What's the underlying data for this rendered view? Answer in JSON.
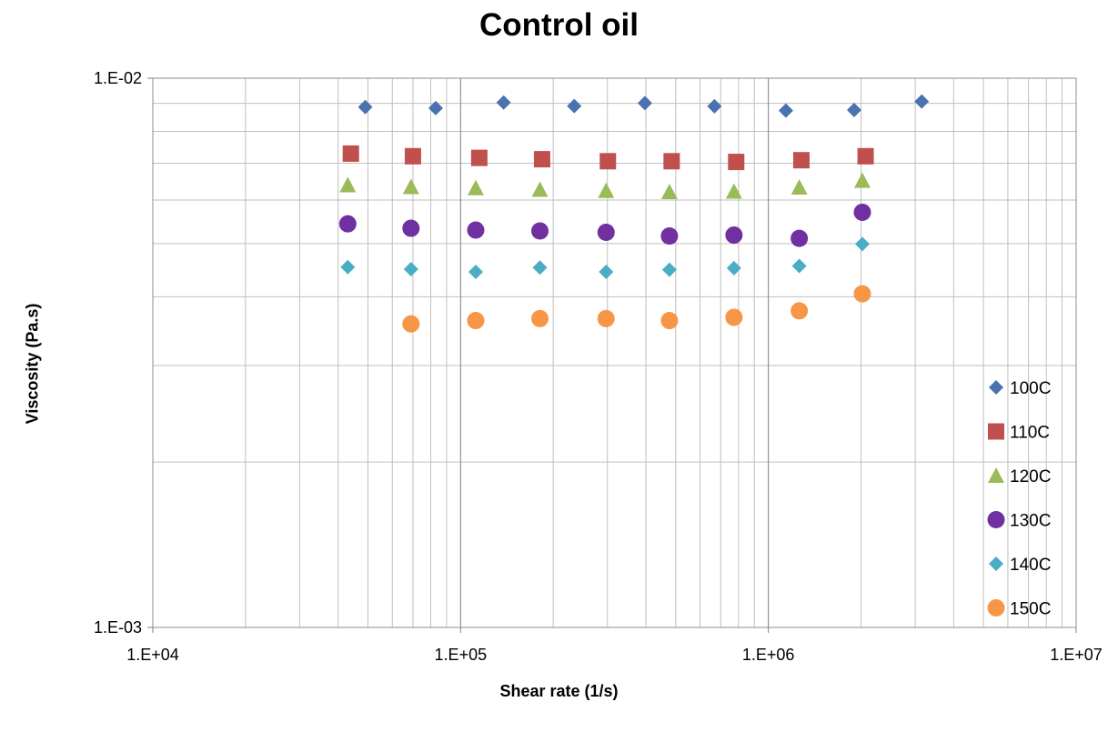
{
  "chart_data": {
    "type": "scatter",
    "title": "Control oil",
    "xlabel": "Shear rate (1/s)",
    "ylabel": "Viscosity (Pa.s)",
    "xscale": "log",
    "yscale": "log",
    "xlim": [
      10000,
      10000000
    ],
    "ylim": [
      0.001,
      0.01
    ],
    "x_tick_labels": [
      "1.E+04",
      "1.E+05",
      "1.E+06",
      "1.E+07"
    ],
    "y_tick_labels": [
      "1.E-03",
      "1.E-02"
    ],
    "grid": true,
    "legend_position": "right",
    "series": [
      {
        "name": "100C",
        "marker": "diamond",
        "color": "#4a72b0",
        "points": [
          [
            49000,
            0.00886
          ],
          [
            83000,
            0.00882
          ],
          [
            138000,
            0.00903
          ],
          [
            234000,
            0.0089
          ],
          [
            397000,
            0.00901
          ],
          [
            668000,
            0.00889
          ],
          [
            1140000,
            0.00873
          ],
          [
            1900000,
            0.00875
          ],
          [
            3150000,
            0.00907
          ]
        ]
      },
      {
        "name": "110C",
        "marker": "square",
        "color": "#c0504d",
        "points": [
          [
            44000,
            0.00729
          ],
          [
            70000,
            0.00721
          ],
          [
            115000,
            0.00716
          ],
          [
            184000,
            0.00712
          ],
          [
            301000,
            0.00706
          ],
          [
            485000,
            0.00706
          ],
          [
            786000,
            0.00704
          ],
          [
            1280000,
            0.00709
          ],
          [
            2070000,
            0.00721
          ]
        ]
      },
      {
        "name": "120C",
        "marker": "triangle",
        "color": "#9bbb59",
        "points": [
          [
            43000,
            0.00639
          ],
          [
            69000,
            0.00634
          ],
          [
            112000,
            0.00631
          ],
          [
            181000,
            0.00627
          ],
          [
            297000,
            0.00624
          ],
          [
            477000,
            0.00621
          ],
          [
            773000,
            0.00622
          ],
          [
            1260000,
            0.00633
          ],
          [
            2020000,
            0.00651
          ]
        ]
      },
      {
        "name": "130C",
        "marker": "circle",
        "color": "#7030a0",
        "points": [
          [
            43000,
            0.00543
          ],
          [
            69000,
            0.00533
          ],
          [
            112000,
            0.00529
          ],
          [
            181000,
            0.00527
          ],
          [
            297000,
            0.00524
          ],
          [
            477000,
            0.00516
          ],
          [
            773000,
            0.00518
          ],
          [
            1260000,
            0.00511
          ],
          [
            2020000,
            0.0057
          ]
        ]
      },
      {
        "name": "140C",
        "marker": "diamond",
        "color": "#4bacc6",
        "points": [
          [
            43000,
            0.00453
          ],
          [
            69000,
            0.00449
          ],
          [
            112000,
            0.00444
          ],
          [
            181000,
            0.00452
          ],
          [
            297000,
            0.00444
          ],
          [
            477000,
            0.00448
          ],
          [
            773000,
            0.00451
          ],
          [
            1260000,
            0.00455
          ],
          [
            2020000,
            0.00499
          ]
        ]
      },
      {
        "name": "150C",
        "marker": "circle",
        "color": "#f79646",
        "points": [
          [
            69000,
            0.00357
          ],
          [
            112000,
            0.00362
          ],
          [
            181000,
            0.00365
          ],
          [
            297000,
            0.00365
          ],
          [
            477000,
            0.00362
          ],
          [
            773000,
            0.00367
          ],
          [
            1260000,
            0.00377
          ],
          [
            2020000,
            0.00405
          ]
        ]
      }
    ]
  }
}
